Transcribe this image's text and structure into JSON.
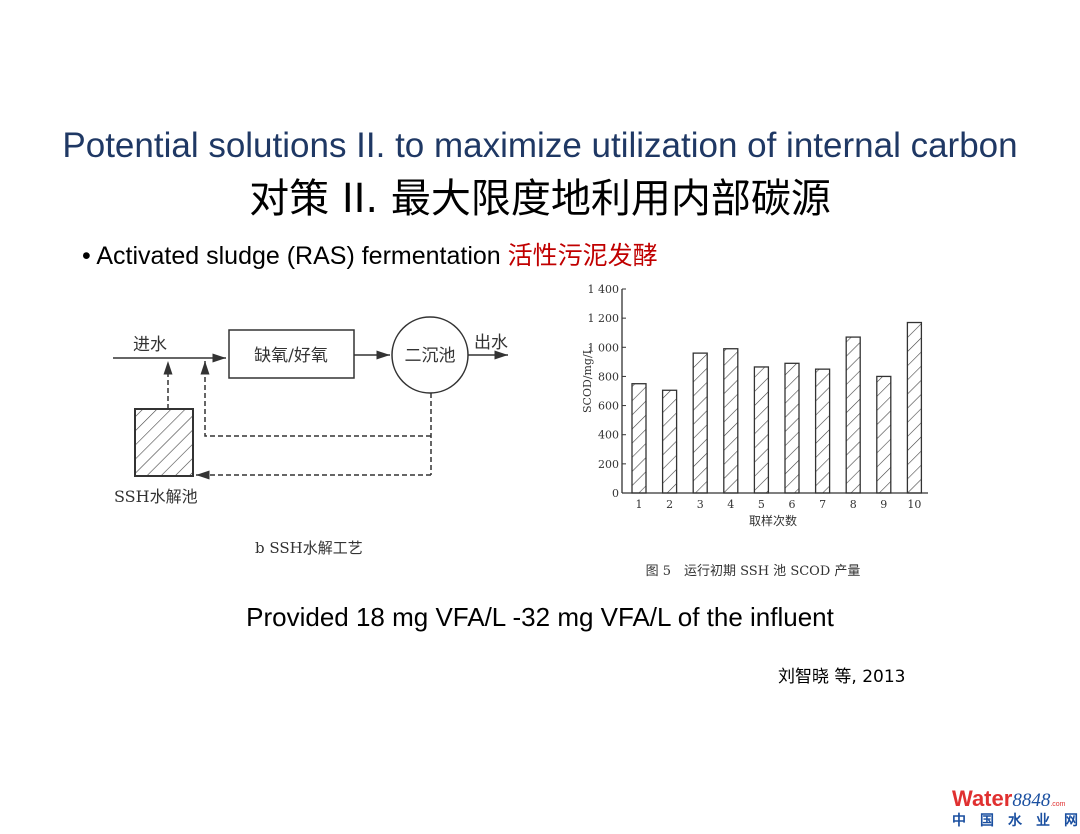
{
  "slide": {
    "title_en": "Potential solutions II. to maximize utilization of internal carbon",
    "title_cn": "对策 II. 最大限度地利用内部碳源",
    "bullet_en": "Activated sludge (RAS) fermentation ",
    "bullet_cn": "活性污泥发酵",
    "bullet_cn_color": "#c00000",
    "title_en_color": "#1f3864",
    "provided": "Provided 18 mg VFA/L -32 mg VFA/L of the influent",
    "citation": "刘智晓 等, 2013"
  },
  "diagram": {
    "influent": "进水",
    "reactor": "缺氧/好氧",
    "clarifier": "二沉池",
    "effluent": "出水",
    "hydrolysis_tank": "SSH水解池",
    "caption": "b SSH水解工艺"
  },
  "chart_data": {
    "type": "bar",
    "categories": [
      "1",
      "2",
      "3",
      "4",
      "5",
      "6",
      "7",
      "8",
      "9",
      "10"
    ],
    "values": [
      750,
      705,
      960,
      990,
      865,
      890,
      850,
      1070,
      800,
      1170
    ],
    "xlabel": "取样次数",
    "ylabel": "SCOD/mg/L",
    "ylim": [
      0,
      1400
    ],
    "yticks": [
      "0",
      "200",
      "400",
      "600",
      "800",
      "1 000",
      "1 200",
      "1 400"
    ],
    "caption": "图 5　运行初期 SSH 池 SCOD 产量",
    "bar_fill": "hatched",
    "grid": false
  },
  "logo": {
    "word": "Water",
    "number": "8848",
    "suffix": ".com",
    "subtitle": "中国水业网"
  }
}
